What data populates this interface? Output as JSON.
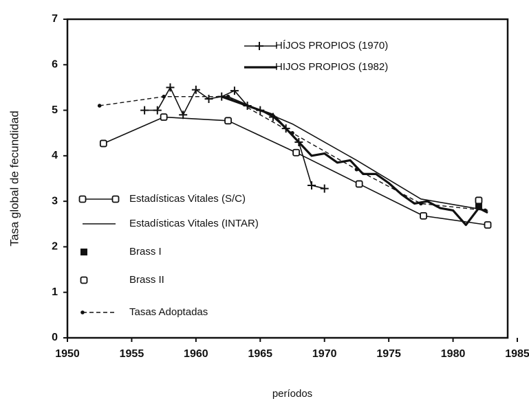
{
  "chart_data": {
    "type": "line",
    "xlabel": "períodos",
    "ylabel": "Tasa global de fecundidad",
    "xlim": [
      1950,
      1985
    ],
    "xticks": [
      1950,
      1955,
      1960,
      1965,
      1970,
      1975,
      1980,
      1985
    ],
    "ylim": [
      0,
      7
    ],
    "yticks": [
      0,
      1,
      2,
      3,
      4,
      5,
      6,
      7
    ],
    "series": [
      {
        "name": "HÍJOS PROPIOS (1970)",
        "color": "#111111",
        "marker": "plus",
        "line": "solid",
        "x": [
          1956,
          1957,
          1958,
          1959,
          1960,
          1961,
          1962,
          1963,
          1964,
          1965,
          1966,
          1967,
          1968,
          1969,
          1970
        ],
        "values": [
          5.0,
          5.0,
          5.5,
          4.9,
          5.45,
          5.25,
          5.3,
          5.43,
          5.1,
          5.0,
          4.85,
          4.6,
          4.3,
          3.35,
          3.28
        ]
      },
      {
        "name": "HIJOS PROPIOS (1982)",
        "color": "#111111",
        "marker": "none",
        "line": "thick",
        "x": [
          1962,
          1964,
          1966,
          1968,
          1969,
          1970,
          1971,
          1972,
          1973,
          1974,
          1975,
          1976,
          1977,
          1978,
          1979,
          1980,
          1981,
          1982,
          1982.7
        ],
        "values": [
          5.3,
          5.1,
          4.9,
          4.3,
          4.0,
          4.05,
          3.85,
          3.9,
          3.6,
          3.6,
          3.4,
          3.15,
          2.95,
          3.0,
          2.85,
          2.8,
          2.48,
          2.85,
          2.75
        ]
      },
      {
        "name": "Estadísticas Vitales (S/C)",
        "color": "#111111",
        "marker": "square",
        "line": "solid",
        "x": [
          1952.8,
          1957.5,
          1962.5,
          1967.8,
          1972.7,
          1977.7,
          1982.7
        ],
        "values": [
          4.27,
          4.85,
          4.77,
          4.07,
          3.38,
          2.68,
          2.48
        ]
      },
      {
        "name": "Estadísticas Vitales (INTAR)",
        "color": "#111111",
        "marker": "none",
        "line": "solid",
        "x": [
          1962.5,
          1967.5,
          1972.5,
          1977.5,
          1982.7
        ],
        "values": [
          5.3,
          4.7,
          3.9,
          3.05,
          2.8
        ]
      },
      {
        "name": "Brass  I",
        "color": "#111111",
        "marker": "filled-square",
        "line": "none",
        "x": [
          1982
        ],
        "values": [
          2.9
        ]
      },
      {
        "name": "Brass  II",
        "color": "#111111",
        "marker": "square",
        "line": "none",
        "x": [
          1982
        ],
        "values": [
          3.02
        ]
      },
      {
        "name": "Tasas Adoptadas",
        "color": "#111111",
        "marker": "dot",
        "line": "dashed",
        "x": [
          1952.5,
          1957.5,
          1962.5,
          1967.5,
          1972.5,
          1977.5,
          1982.5
        ],
        "values": [
          5.1,
          5.3,
          5.3,
          4.5,
          3.7,
          2.95,
          2.8
        ]
      }
    ]
  }
}
